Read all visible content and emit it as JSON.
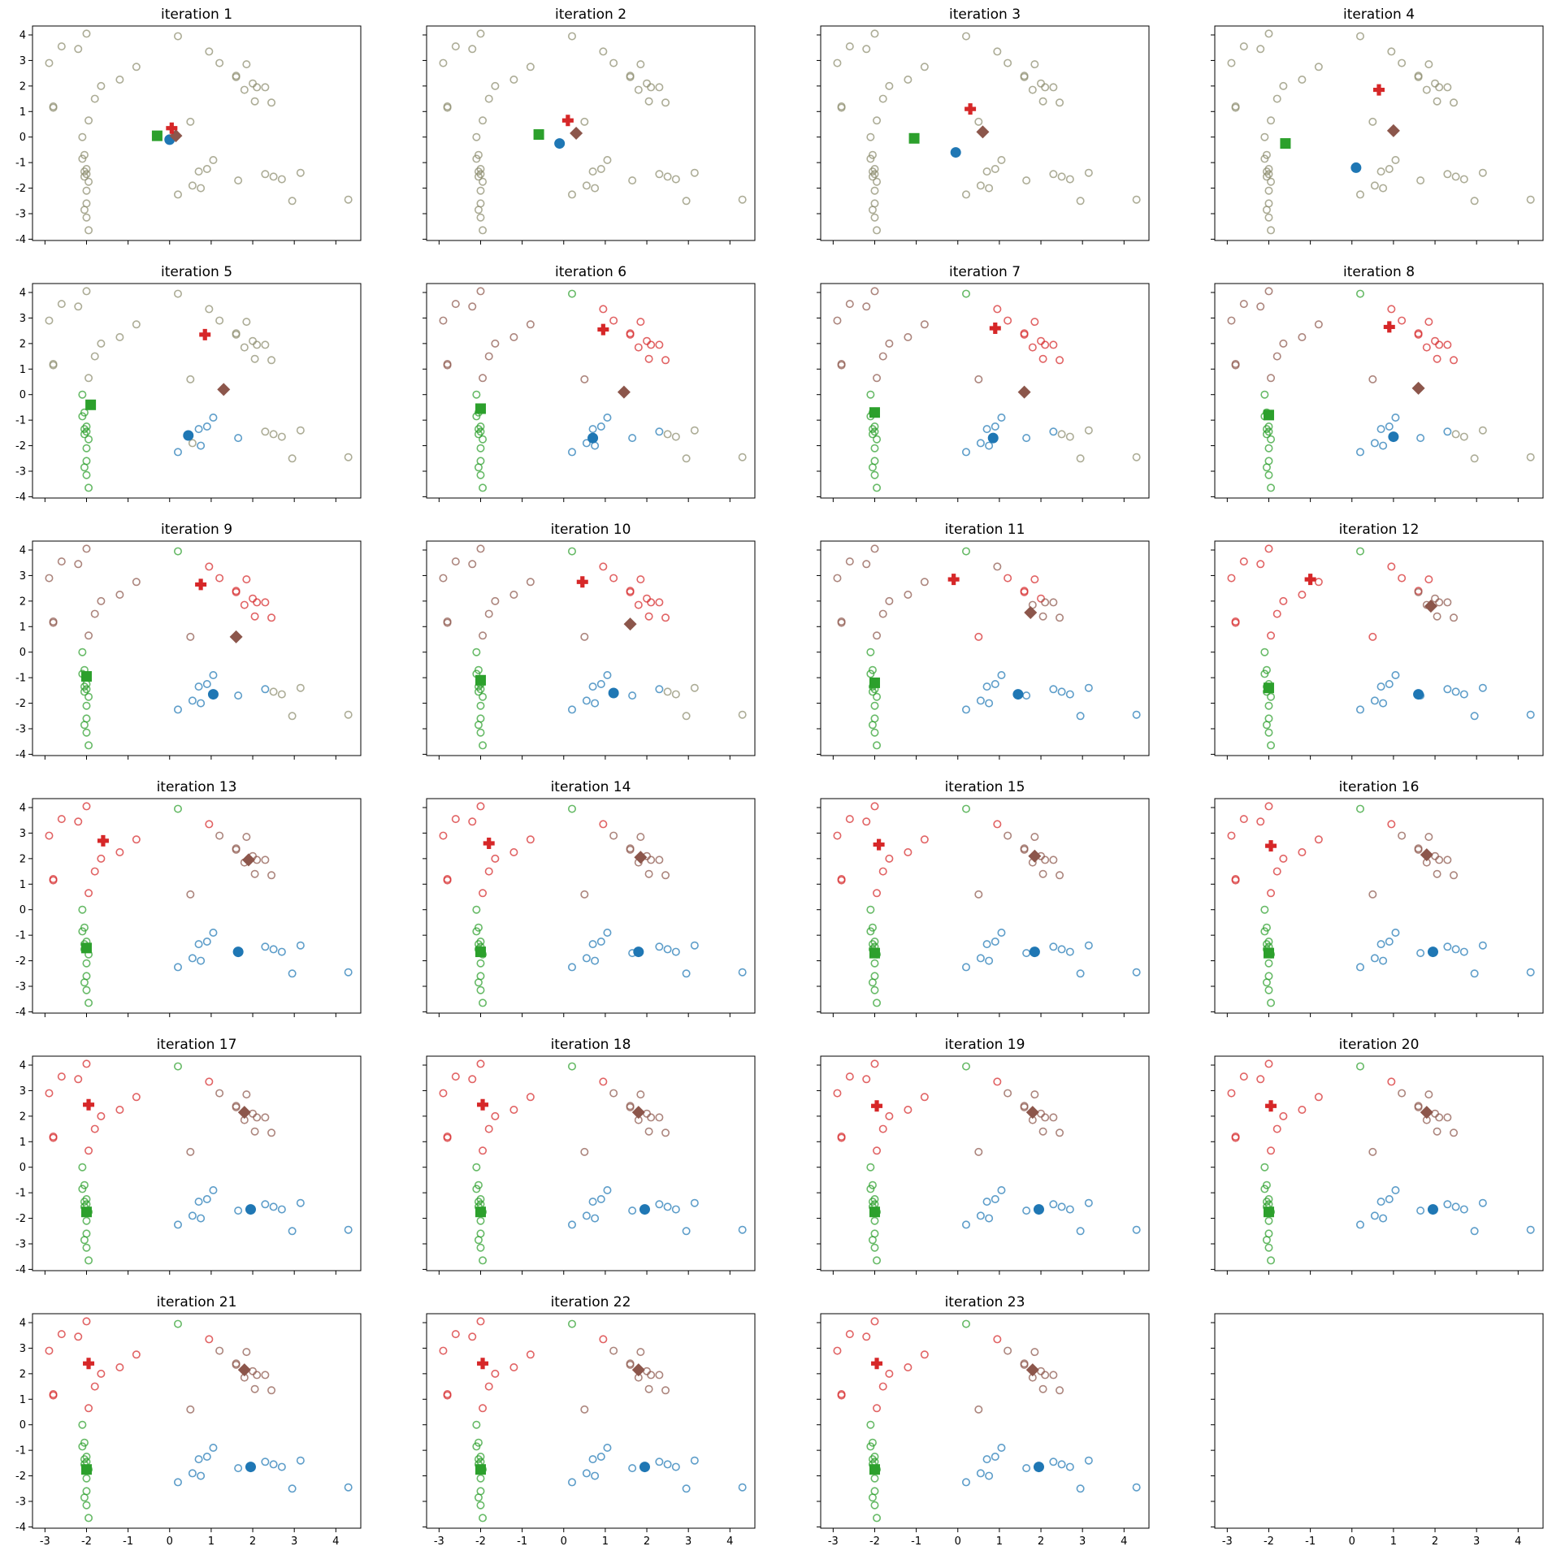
{
  "chart_data": {
    "type": "scatter",
    "subplot_titles": [
      "iteration 1",
      "iteration 2",
      "iteration 3",
      "iteration 4",
      "iteration 5",
      "iteration 6",
      "iteration 7",
      "iteration 8",
      "iteration 9",
      "iteration 10",
      "iteration 11",
      "iteration 12",
      "iteration 13",
      "iteration 14",
      "iteration 15",
      "iteration 16",
      "iteration 17",
      "iteration 18",
      "iteration 19",
      "iteration 20",
      "iteration 21",
      "iteration 22",
      "iteration 23"
    ],
    "xlim": [
      -3.3,
      4.6
    ],
    "ylim": [
      -4.05,
      4.35
    ],
    "x_ticks": [
      "-3",
      "-2",
      "-1",
      "0",
      "1",
      "2",
      "3",
      "4"
    ],
    "y_ticks": [
      "-4",
      "-3",
      "-2",
      "-1",
      "0",
      "1",
      "2",
      "3",
      "4"
    ],
    "cluster_colors": {
      "blue": "#1f77b4",
      "green": "#2ca02c",
      "red": "#d62728",
      "brown": "#8c564b"
    },
    "centroid_markers": {
      "blue": "circle",
      "green": "square",
      "red": "plus",
      "brown": "diamond"
    },
    "unassigned_color": "#8c8c6e",
    "points": [
      [
        -2.9,
        2.9
      ],
      [
        -2.6,
        3.55
      ],
      [
        -2.2,
        3.45
      ],
      [
        -2.0,
        4.05
      ],
      [
        -2.8,
        1.2
      ],
      [
        -2.8,
        1.15
      ],
      [
        -1.8,
        1.5
      ],
      [
        -1.65,
        2.0
      ],
      [
        -1.2,
        2.25
      ],
      [
        -0.8,
        2.75
      ],
      [
        -1.95,
        0.65
      ],
      [
        -2.1,
        0.0
      ],
      [
        -2.05,
        -0.7
      ],
      [
        -2.1,
        -0.85
      ],
      [
        -2.0,
        -1.25
      ],
      [
        -2.05,
        -1.35
      ],
      [
        -2.0,
        -1.45
      ],
      [
        -2.05,
        -1.55
      ],
      [
        -1.95,
        -1.75
      ],
      [
        -2.0,
        -2.1
      ],
      [
        -2.0,
        -2.6
      ],
      [
        -2.05,
        -2.85
      ],
      [
        -2.0,
        -3.15
      ],
      [
        -1.95,
        -3.65
      ],
      [
        0.2,
        3.95
      ],
      [
        0.95,
        3.35
      ],
      [
        1.2,
        2.9
      ],
      [
        1.6,
        2.4
      ],
      [
        1.85,
        2.85
      ],
      [
        1.6,
        2.35
      ],
      [
        2.0,
        2.1
      ],
      [
        2.1,
        1.95
      ],
      [
        2.3,
        1.95
      ],
      [
        1.8,
        1.85
      ],
      [
        2.05,
        1.4
      ],
      [
        2.45,
        1.35
      ],
      [
        0.5,
        0.6
      ],
      [
        0.55,
        -1.9
      ],
      [
        0.75,
        -2.0
      ],
      [
        0.7,
        -1.35
      ],
      [
        0.9,
        -1.25
      ],
      [
        1.05,
        -0.9
      ],
      [
        0.2,
        -2.25
      ],
      [
        1.65,
        -1.7
      ],
      [
        2.3,
        -1.45
      ],
      [
        2.5,
        -1.55
      ],
      [
        2.7,
        -1.65
      ],
      [
        3.15,
        -1.4
      ],
      [
        2.95,
        -2.5
      ],
      [
        4.3,
        -2.45
      ]
    ],
    "assignments": [
      "uuuuuuuuuuuuuuuuuuuuuuuuuuuuuuuuuuuuuuuuuuuuuuuuuu",
      "uuuuuuuuuuuuuuuuuuuuuuuuuuuuuuuuuuuuuuuuuuuuuuuuuu",
      "uuuuuuuuuuuuuuuuuuuuuuuuuuuuuuuuuuuuuuuuuuuuuuuuuu",
      "uuuuuuuuuuuuuuuuuuuuuuuuuuuuuuuuuuuuuuuuuuuuuuuuuu",
      "uuuuuuuuuuuggggggggggggguuuuuuuuuuuuuubbbbbbuuuuuu",
      "tttttttttttggggggggggggggrrrrrrrrrrrtbbbbbbbbuuuuu",
      "tttttttttttggggggggggggggrrrrrrrrrrrtbbbbbbbbuuuuu",
      "tttttttttttggggggggggggggrrrrrrrrrrrtbbbbbbbbuuuuu",
      "tttttttttttggggggggggggggrrrrrrrrrrrtbbbbbbbbuuuuu",
      "tttttttttttggggggggggggggrrrrrrrrrrrtbbbbbbbbuuuuu",
      "tttttttttttggggggggggggggtrrrrrtttttrbbbbbbbbbbbbb",
      "rrrrrrrrrrrggggggggggggggrrrrtttttttrbbbbbbbbbbbbb",
      "rrrrrrrrrrrggggggggggggggrtttttttttttbbbbbbbbbbbbb",
      "rrrrrrrrrrrggggggggggggggrtttttttttttbbbbbbbbbbbbb",
      "rrrrrrrrrrrggggggggggggggrtttttttttttbbbbbbbbbbbbb",
      "rrrrrrrrrrrggggggggggggggrtttttttttttbbbbbbbbbbbbb",
      "rrrrrrrrrrrggggggggggggggrtttttttttttbbbbbbbbbbbbb",
      "rrrrrrrrrrrggggggggggggggrtttttttttttbbbbbbbbbbbbb",
      "rrrrrrrrrrrggggggggggggggrtttttttttttbbbbbbbbbbbbb",
      "rrrrrrrrrrrggggggggggggggrtttttttttttbbbbbbbbbbbbb",
      "rrrrrrrrrrrggggggggggggggrtttttttttttbbbbbbbbbbbbb",
      "rrrrrrrrrrrggggggggggggggrtttttttttttbbbbbbbbbbbbb",
      "rrrrrrrrrrrggggggggggggggrtttttttttttbbbbbbbbbbbbb"
    ],
    "centroids": [
      {
        "blue": [
          0.0,
          -0.1
        ],
        "green": [
          -0.3,
          0.05
        ],
        "red": [
          0.05,
          0.35
        ],
        "brown": [
          0.15,
          0.05
        ]
      },
      {
        "blue": [
          -0.1,
          -0.25
        ],
        "green": [
          -0.6,
          0.1
        ],
        "red": [
          0.1,
          0.65
        ],
        "brown": [
          0.3,
          0.15
        ]
      },
      {
        "blue": [
          -0.05,
          -0.6
        ],
        "green": [
          -1.05,
          -0.05
        ],
        "red": [
          0.3,
          1.1
        ],
        "brown": [
          0.6,
          0.2
        ]
      },
      {
        "blue": [
          0.1,
          -1.2
        ],
        "green": [
          -1.6,
          -0.25
        ],
        "red": [
          0.65,
          1.85
        ],
        "brown": [
          1.0,
          0.25
        ]
      },
      {
        "blue": [
          0.45,
          -1.6
        ],
        "green": [
          -1.9,
          -0.4
        ],
        "red": [
          0.85,
          2.35
        ],
        "brown": [
          1.3,
          0.2
        ]
      },
      {
        "blue": [
          0.7,
          -1.7
        ],
        "green": [
          -2.0,
          -0.55
        ],
        "red": [
          0.95,
          2.55
        ],
        "brown": [
          1.45,
          0.1
        ]
      },
      {
        "blue": [
          0.85,
          -1.7
        ],
        "green": [
          -2.0,
          -0.7
        ],
        "red": [
          0.9,
          2.6
        ],
        "brown": [
          1.6,
          0.1
        ]
      },
      {
        "blue": [
          1.0,
          -1.65
        ],
        "green": [
          -2.0,
          -0.8
        ],
        "red": [
          0.9,
          2.65
        ],
        "brown": [
          1.6,
          0.25
        ]
      },
      {
        "blue": [
          1.05,
          -1.65
        ],
        "green": [
          -2.0,
          -0.95
        ],
        "red": [
          0.75,
          2.65
        ],
        "brown": [
          1.6,
          0.6
        ]
      },
      {
        "blue": [
          1.2,
          -1.6
        ],
        "green": [
          -2.0,
          -1.1
        ],
        "red": [
          0.45,
          2.75
        ],
        "brown": [
          1.6,
          1.1
        ]
      },
      {
        "blue": [
          1.45,
          -1.65
        ],
        "green": [
          -2.0,
          -1.2
        ],
        "red": [
          -0.1,
          2.85
        ],
        "brown": [
          1.75,
          1.55
        ]
      },
      {
        "blue": [
          1.6,
          -1.65
        ],
        "green": [
          -2.0,
          -1.4
        ],
        "red": [
          -1.0,
          2.85
        ],
        "brown": [
          1.9,
          1.8
        ]
      },
      {
        "blue": [
          1.65,
          -1.65
        ],
        "green": [
          -2.0,
          -1.5
        ],
        "red": [
          -1.6,
          2.7
        ],
        "brown": [
          1.9,
          1.95
        ]
      },
      {
        "blue": [
          1.8,
          -1.65
        ],
        "green": [
          -2.0,
          -1.65
        ],
        "red": [
          -1.8,
          2.6
        ],
        "brown": [
          1.85,
          2.05
        ]
      },
      {
        "blue": [
          1.85,
          -1.65
        ],
        "green": [
          -2.0,
          -1.7
        ],
        "red": [
          -1.9,
          2.55
        ],
        "brown": [
          1.85,
          2.1
        ]
      },
      {
        "blue": [
          1.95,
          -1.65
        ],
        "green": [
          -2.0,
          -1.7
        ],
        "red": [
          -1.95,
          2.5
        ],
        "brown": [
          1.8,
          2.15
        ]
      },
      {
        "blue": [
          1.95,
          -1.65
        ],
        "green": [
          -2.0,
          -1.75
        ],
        "red": [
          -1.95,
          2.45
        ],
        "brown": [
          1.8,
          2.15
        ]
      },
      {
        "blue": [
          1.95,
          -1.65
        ],
        "green": [
          -2.0,
          -1.75
        ],
        "red": [
          -1.95,
          2.45
        ],
        "brown": [
          1.8,
          2.15
        ]
      },
      {
        "blue": [
          1.95,
          -1.65
        ],
        "green": [
          -2.0,
          -1.75
        ],
        "red": [
          -1.95,
          2.4
        ],
        "brown": [
          1.8,
          2.15
        ]
      },
      {
        "blue": [
          1.95,
          -1.65
        ],
        "green": [
          -2.0,
          -1.75
        ],
        "red": [
          -1.95,
          2.4
        ],
        "brown": [
          1.8,
          2.15
        ]
      },
      {
        "blue": [
          1.95,
          -1.65
        ],
        "green": [
          -2.0,
          -1.75
        ],
        "red": [
          -1.95,
          2.4
        ],
        "brown": [
          1.8,
          2.15
        ]
      },
      {
        "blue": [
          1.95,
          -1.65
        ],
        "green": [
          -2.0,
          -1.75
        ],
        "red": [
          -1.95,
          2.4
        ],
        "brown": [
          1.8,
          2.15
        ]
      },
      {
        "blue": [
          1.95,
          -1.65
        ],
        "green": [
          -2.0,
          -1.75
        ],
        "red": [
          -1.95,
          2.4
        ],
        "brown": [
          1.8,
          2.15
        ]
      }
    ]
  }
}
